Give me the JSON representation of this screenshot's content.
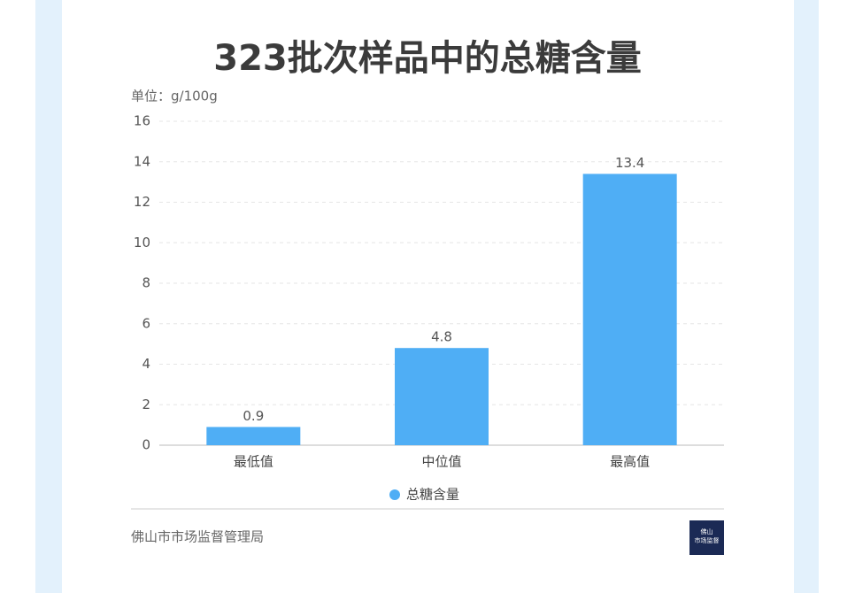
{
  "chart_data": {
    "type": "bar",
    "title": "323批次样品中的总糖含量",
    "y_axis_label": "单位：g/100g",
    "categories": [
      "最低值",
      "中位值",
      "最高值"
    ],
    "series": [
      {
        "name": "总糖含量",
        "color": "#4faef5",
        "values": [
          0.9,
          4.8,
          13.4
        ]
      }
    ],
    "ylim": [
      0,
      16
    ],
    "yticks": [
      0,
      2,
      4,
      6,
      8,
      10,
      12,
      14,
      16
    ],
    "grid": true,
    "legend": "bottom"
  },
  "footer": {
    "source": "佛山市市场监督管理局",
    "logo_lines": [
      "佛山",
      "市场监督"
    ]
  }
}
